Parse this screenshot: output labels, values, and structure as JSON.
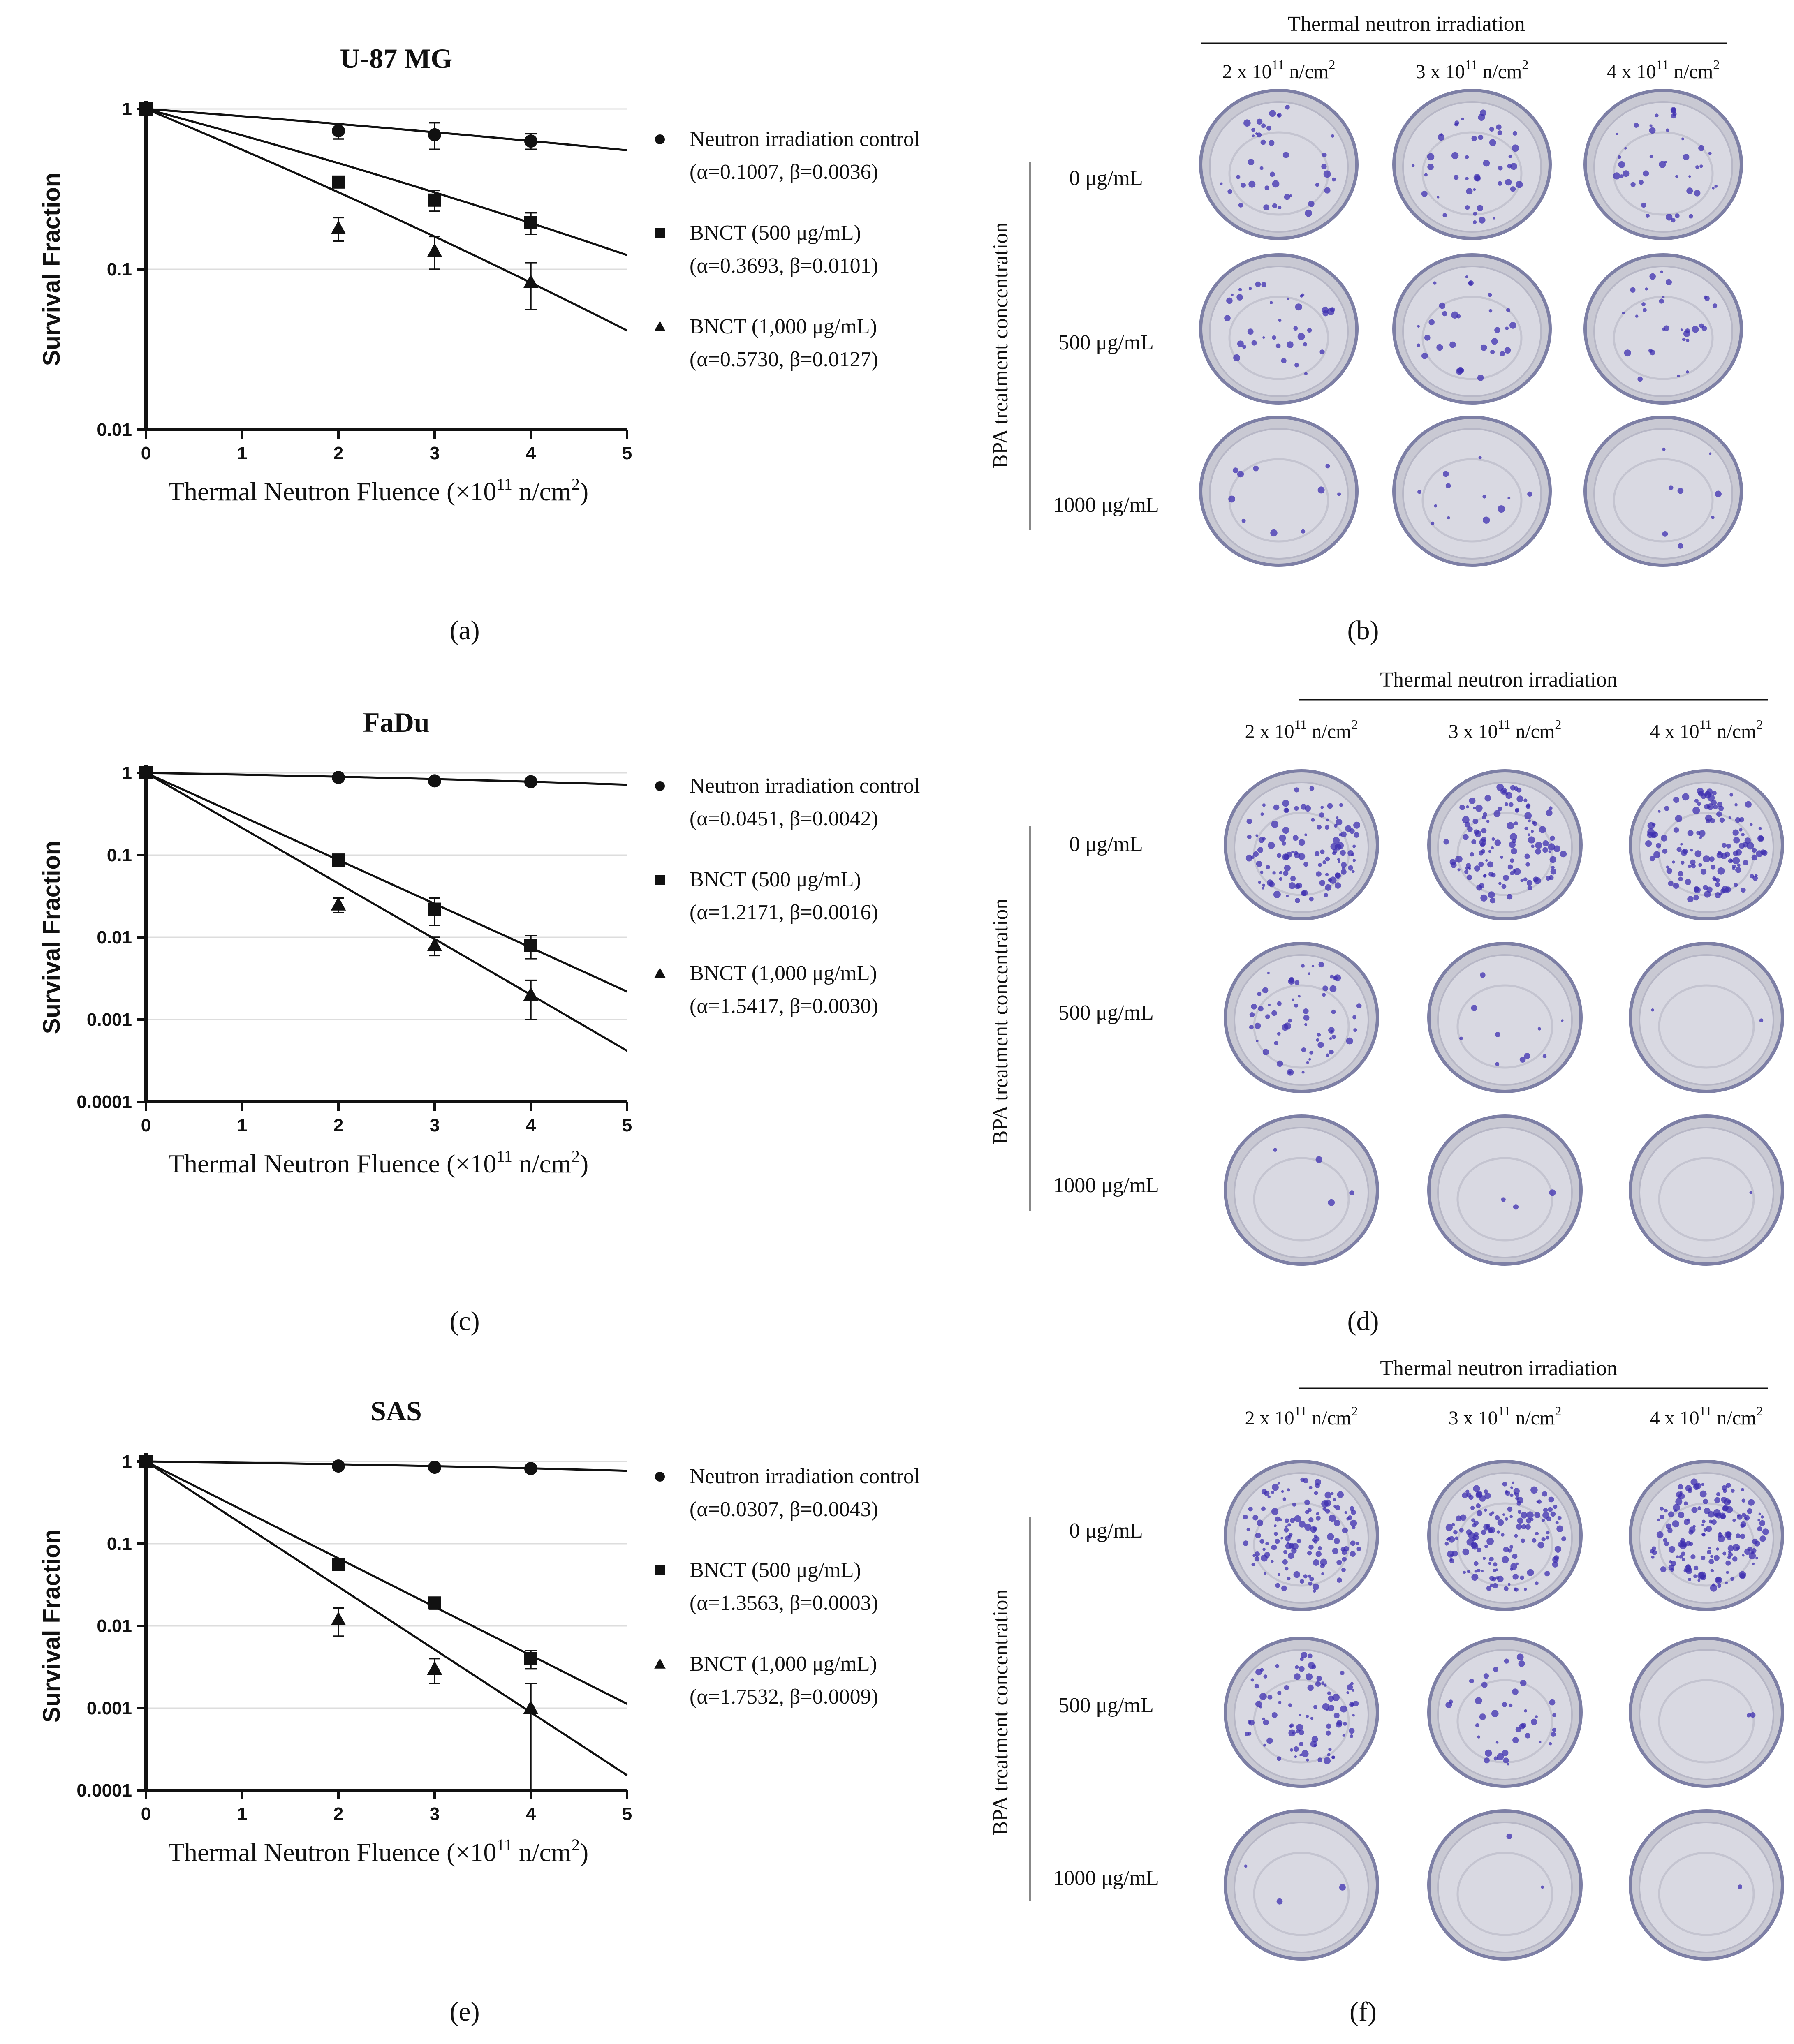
{
  "panel_labels": [
    "(a)",
    "(b)",
    "(c)",
    "(d)",
    "(e)",
    "(f)"
  ],
  "chart_data": [
    {
      "type": "scatter",
      "title": "U-87 MG",
      "ylabel": "Survival Fraction",
      "xlabel": "Thermal Neutron Fluence (×10",
      "xlabel_sup": "11",
      "xlabel_tail": " n/cm",
      "xlabel_sup2": "2",
      "xlabel_end": ")",
      "y_scale": "log",
      "xlim": [
        0,
        5
      ],
      "ylim": [
        0.01,
        1
      ],
      "xticks": [
        "0",
        "1",
        "2",
        "3",
        "4",
        "5"
      ],
      "yticks": [
        "0.01",
        "0.1",
        "1"
      ],
      "grid": "horizontal",
      "legend_position": "right",
      "series": [
        {
          "name": "Neutron irradiation control",
          "params": "(α=0.1007, β=0.0036)",
          "marker": "circle",
          "alpha": 0.1007,
          "beta": 0.0036,
          "x": [
            0,
            2,
            3,
            4
          ],
          "y": [
            1,
            0.73,
            0.69,
            0.63
          ],
          "err": [
            0,
            0.08,
            0.13,
            0.07
          ]
        },
        {
          "name": "BNCT (500 μg/mL)",
          "params": "(α=0.3693, β=0.0101)",
          "marker": "square",
          "alpha": 0.3693,
          "beta": 0.0101,
          "x": [
            0,
            2,
            3,
            4
          ],
          "y": [
            1,
            0.35,
            0.27,
            0.195
          ],
          "err": [
            0,
            0.02,
            0.04,
            0.03
          ]
        },
        {
          "name": "BNCT (1,000 μg/mL)",
          "params": "(α=0.5730, β=0.0127)",
          "marker": "triangle",
          "alpha": 0.573,
          "beta": 0.0127,
          "x": [
            0,
            2,
            3,
            4
          ],
          "y": [
            1,
            0.18,
            0.13,
            0.083
          ],
          "err": [
            0,
            0.03,
            0.03,
            0.027
          ]
        }
      ]
    },
    {
      "type": "scatter",
      "title": "FaDu",
      "ylabel": "Survival Fraction",
      "xlabel": "Thermal Neutron Fluence (×10",
      "xlabel_sup": "11",
      "xlabel_tail": " n/cm",
      "xlabel_sup2": "2",
      "xlabel_end": ")",
      "y_scale": "log",
      "xlim": [
        0,
        5
      ],
      "ylim": [
        0.0001,
        1
      ],
      "xticks": [
        "0",
        "1",
        "2",
        "3",
        "4",
        "5"
      ],
      "yticks": [
        "0.0001",
        "0.001",
        "0.01",
        "0.1",
        "1"
      ],
      "grid": "horizontal",
      "legend_position": "right",
      "series": [
        {
          "name": "Neutron irradiation control",
          "params": "(α=0.0451, β=0.0042)",
          "marker": "circle",
          "alpha": 0.0451,
          "beta": 0.0042,
          "x": [
            0,
            2,
            3,
            4
          ],
          "y": [
            1,
            0.88,
            0.8,
            0.78
          ],
          "err": [
            0,
            0.05,
            0.05,
            0.05
          ]
        },
        {
          "name": "BNCT (500 μg/mL)",
          "params": "(α=1.2171, β=0.0016)",
          "marker": "square",
          "alpha": 1.2171,
          "beta": 0.0016,
          "x": [
            0,
            2,
            3,
            4
          ],
          "y": [
            1,
            0.087,
            0.022,
            0.008
          ],
          "err": [
            0,
            0.008,
            0.008,
            0.0025
          ]
        },
        {
          "name": "BNCT (1,000 μg/mL)",
          "params": "(α=1.5417, β=0.0030)",
          "marker": "triangle",
          "alpha": 1.5417,
          "beta": 0.003,
          "x": [
            0,
            2,
            3,
            4
          ],
          "y": [
            1,
            0.025,
            0.008,
            0.002
          ],
          "err": [
            0,
            0.005,
            0.002,
            0.001
          ]
        }
      ]
    },
    {
      "type": "scatter",
      "title": "SAS",
      "ylabel": "Survival Fraction",
      "xlabel": "Thermal Neutron Fluence (×10",
      "xlabel_sup": "11",
      "xlabel_tail": " n/cm",
      "xlabel_sup2": "2",
      "xlabel_end": ")",
      "y_scale": "log",
      "xlim": [
        0,
        5
      ],
      "ylim": [
        0.0001,
        1
      ],
      "xticks": [
        "0",
        "1",
        "2",
        "3",
        "4",
        "5"
      ],
      "yticks": [
        "0.0001",
        "0.001",
        "0.01",
        "0.1",
        "1"
      ],
      "grid": "horizontal",
      "legend_position": "right",
      "series": [
        {
          "name": "Neutron irradiation control",
          "params": "(α=0.0307, β=0.0043)",
          "marker": "circle",
          "alpha": 0.0307,
          "beta": 0.0043,
          "x": [
            0,
            2,
            3,
            4
          ],
          "y": [
            1,
            0.88,
            0.85,
            0.82
          ],
          "err": [
            0,
            0.04,
            0.04,
            0.04
          ]
        },
        {
          "name": "BNCT (500 μg/mL)",
          "params": "(α=1.3563, β=0.0003)",
          "marker": "square",
          "alpha": 1.3563,
          "beta": 0.0003,
          "x": [
            0,
            2,
            3,
            4
          ],
          "y": [
            1,
            0.056,
            0.019,
            0.004
          ],
          "err": [
            0,
            0.006,
            0.003,
            0.001
          ]
        },
        {
          "name": "BNCT (1,000 μg/mL)",
          "params": "(α=1.7532, β=0.0009)",
          "marker": "triangle",
          "alpha": 1.7532,
          "beta": 0.0009,
          "x": [
            0,
            2,
            3,
            4
          ],
          "y": [
            1,
            0.012,
            0.003,
            0.001
          ],
          "err": [
            0,
            0.0045,
            0.001,
            0.001
          ]
        }
      ]
    }
  ],
  "plates": [
    {
      "header": "Thermal neutron irradiation",
      "columns": [
        "2 x 10",
        "3 x 10",
        "4 x 10"
      ],
      "col_sup": "11",
      "col_unit": " n/cm",
      "col_unit_sup": "2",
      "row_title": "BPA treatment concentration",
      "rows": [
        "0 μg/mL",
        "500 μg/mL",
        "1000 μg/mL"
      ],
      "colony_density": [
        [
          40,
          45,
          40
        ],
        [
          35,
          30,
          30
        ],
        [
          10,
          12,
          8
        ]
      ]
    },
    {
      "header": "Thermal neutron irradiation",
      "columns": [
        "2 x 10",
        "3 x 10",
        "4 x 10"
      ],
      "col_sup": "11",
      "col_unit": " n/cm",
      "col_unit_sup": "2",
      "row_title": "BPA treatment concentration",
      "rows": [
        "0 μg/mL",
        "500 μg/mL",
        "1000 μg/mL"
      ],
      "colony_density": [
        [
          110,
          120,
          130
        ],
        [
          60,
          10,
          2
        ],
        [
          4,
          3,
          1
        ]
      ]
    },
    {
      "header": "Thermal neutron irradiation",
      "columns": [
        "2 x 10",
        "3 x 10",
        "4 x 10"
      ],
      "col_sup": "11",
      "col_unit": " n/cm",
      "col_unit_sup": "2",
      "row_title": "BPA treatment concentration",
      "rows": [
        "0 μg/mL",
        "500 μg/mL",
        "1000 μg/mL"
      ],
      "colony_density": [
        [
          130,
          150,
          160
        ],
        [
          90,
          40,
          2
        ],
        [
          3,
          2,
          1
        ]
      ]
    }
  ],
  "colors": {
    "ink": "#111111",
    "grid": "#dddddd",
    "plate_rim": "#7d7fa5",
    "plate_fill": "#d9d9e2",
    "colony": "#3d2fb0"
  }
}
